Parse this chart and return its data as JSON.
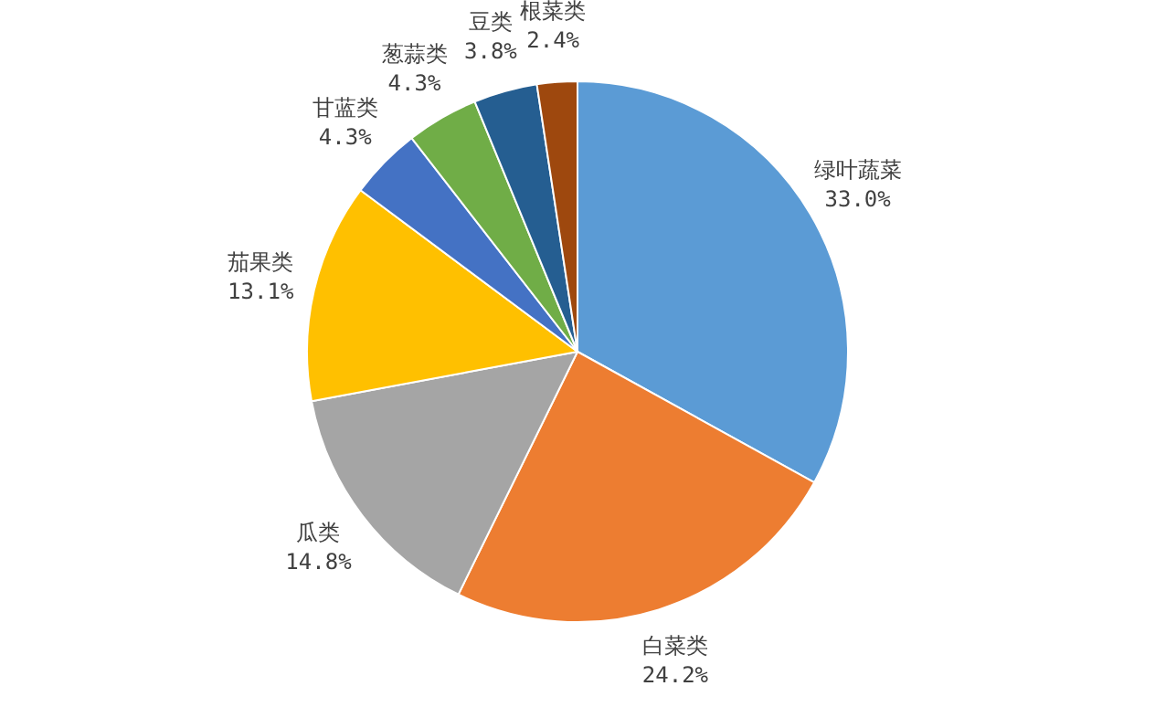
{
  "chart_data": {
    "type": "pie",
    "categories": [
      "绿叶蔬菜",
      "白菜类",
      "瓜类",
      "茄果类",
      "甘蓝类",
      "葱蒜类",
      "豆类",
      "根菜类"
    ],
    "values": [
      33.0,
      24.2,
      14.8,
      13.1,
      4.3,
      4.3,
      3.8,
      2.4
    ],
    "colors": [
      "#5b9bd5",
      "#ed7d31",
      "#a5a5a5",
      "#ffc000",
      "#4472c4",
      "#70ad47",
      "#255e91",
      "#9e480e"
    ],
    "value_labels": [
      "33.0%",
      "24.2%",
      "14.8%",
      "13.1%",
      "4.3%",
      "4.3%",
      "3.8%",
      "2.4%"
    ],
    "legend": false
  }
}
